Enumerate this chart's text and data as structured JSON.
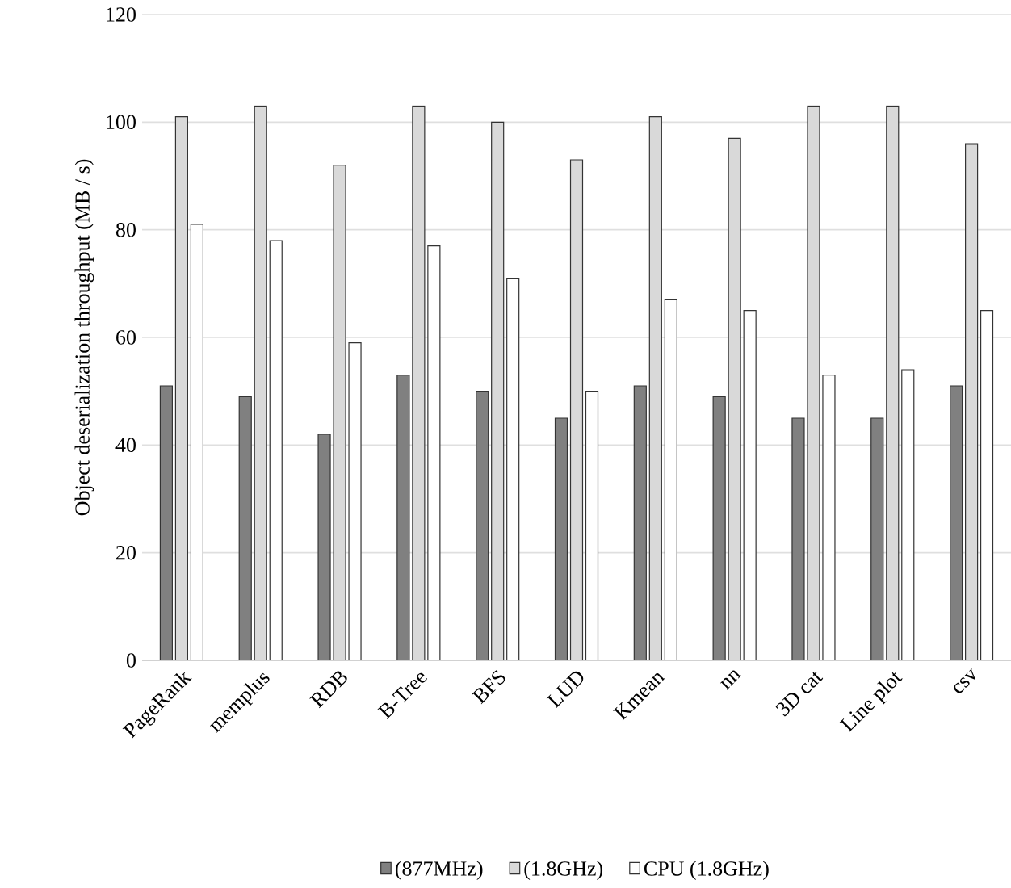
{
  "chart_data": {
    "type": "bar",
    "ylabel": "Object deserialization throughput  (MB / s)",
    "categories": [
      "PageRank",
      "memplus",
      "RDB",
      "B-Tree",
      "BFS",
      "LUD",
      "Kmean",
      "nn",
      "3D cat",
      "Line plot",
      "csv"
    ],
    "series": [
      {
        "name": "(877MHz)",
        "color": "#808080",
        "values": [
          51,
          49,
          42,
          53,
          50,
          45,
          51,
          49,
          45,
          45,
          51
        ]
      },
      {
        "name": "(1.8GHz)",
        "color": "#d9d9d9",
        "values": [
          101,
          103,
          92,
          103,
          100,
          93,
          101,
          97,
          103,
          103,
          96
        ]
      },
      {
        "name": "CPU (1.8GHz)",
        "color": "#ffffff",
        "values": [
          81,
          78,
          59,
          77,
          71,
          50,
          67,
          65,
          53,
          54,
          65
        ]
      }
    ],
    "ylim": [
      0,
      120
    ],
    "yticks": [
      0,
      20,
      40,
      60,
      80,
      100,
      120
    ],
    "grid": "y",
    "legend": "bottom"
  }
}
